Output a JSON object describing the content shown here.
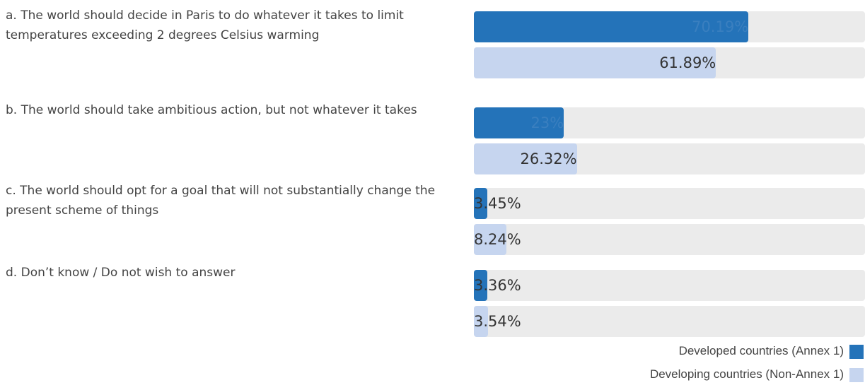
{
  "chart_data": {
    "type": "bar",
    "orientation": "horizontal",
    "categories": [
      "a. The world should decide in Paris to do whatever it takes to limit temperatures exceeding 2 degrees Celsius warming",
      "b. The world should take ambitious action, but not whatever it takes",
      "c. The world should opt for a goal that will not substantially change the present scheme of things",
      "d. Don’t know / Do not wish to answer"
    ],
    "xlim": [
      0,
      100
    ],
    "series": [
      {
        "name": "Developed countries (Annex 1)",
        "color": "#2473b9",
        "values": [
          70.19,
          23,
          3.45,
          3.36
        ],
        "value_labels": [
          "70.19%",
          "23%",
          "3.45%",
          "3.36%"
        ]
      },
      {
        "name": "Developing countries (Non-Annex 1)",
        "color": "#c6d5ef",
        "values": [
          61.89,
          26.32,
          8.24,
          3.54
        ],
        "value_labels": [
          "61.89%",
          "26.32%",
          "8.24%",
          "3.54%"
        ]
      }
    ],
    "legend": "bottom-right"
  }
}
